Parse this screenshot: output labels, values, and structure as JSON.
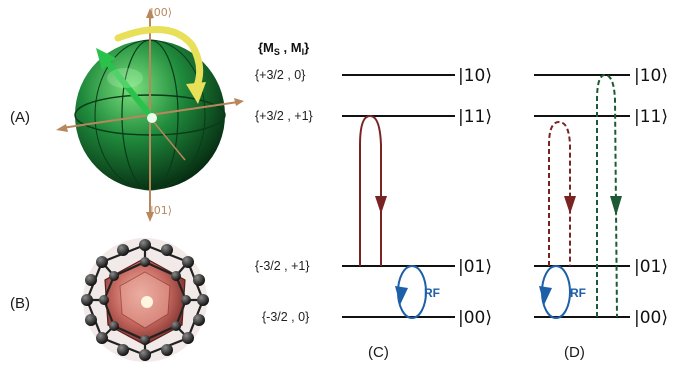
{
  "figure": {
    "panel_labels": {
      "A": "(A)",
      "B": "(B)",
      "C": "(C)",
      "D": "(D)"
    },
    "sphere_kets": {
      "top": "|00⟩",
      "bottom": "|01⟩"
    },
    "state_header": {
      "open": "{M",
      "ms_sub": "S",
      "sep": " , M",
      "mi_sub": "I",
      "close": "}"
    },
    "states": [
      {
        "label": "{+3/2 , 0}",
        "ket": "|10⟩"
      },
      {
        "label": "{+3/2 , +1}",
        "ket": "|11⟩"
      },
      {
        "label": "{-3/2 , +1}",
        "ket": "|01⟩"
      },
      {
        "label": "{-3/2 , 0}",
        "ket": "|00⟩"
      }
    ],
    "right_kets": [
      "|10⟩",
      "|11⟩",
      "|01⟩",
      "|00⟩"
    ],
    "rf_label_c": "RF",
    "rf_label_d": "RF",
    "colors": {
      "transition_red": "#7a2323",
      "transition_green": "#1c5a35",
      "rf_blue": "#1d5fa8",
      "sphere_green": "#1f8a3c",
      "bucky_ball": "#2b2b2b",
      "bucky_core": "#c76b62"
    }
  }
}
